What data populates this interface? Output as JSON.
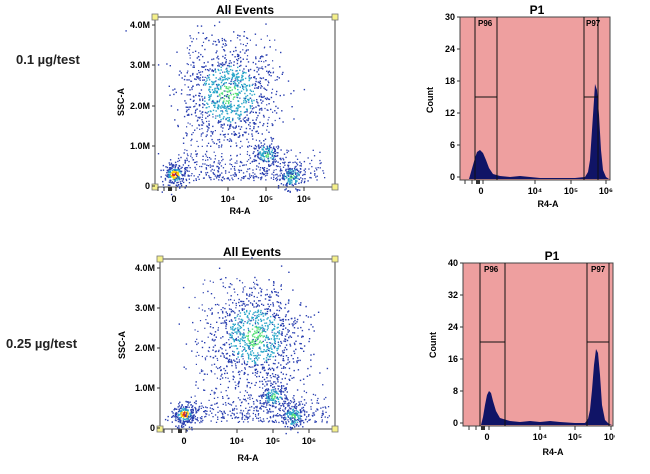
{
  "rows": [
    {
      "label": "0.1 µg/test"
    },
    {
      "label": "0.25 µg/test"
    }
  ],
  "colors": {
    "dot_low": "#2a3fb0",
    "dot_mid": "#2aa6c9",
    "dot_high": "#59e07a",
    "dot_hot": "#ffd500",
    "dot_peak": "#e0301c",
    "histogram_bg": "#ee9f9f",
    "histogram_fill": "#101466",
    "handle": "#f5f08a"
  },
  "chart_data": [
    {
      "type": "scatter",
      "title": "All Events",
      "xlabel": "R4-A",
      "ylabel": "SSC-A",
      "x_scale": "biexponential",
      "x_ticks": [
        "0",
        "10⁴",
        "10⁵",
        "10⁶"
      ],
      "y_ticks": [
        "0",
        "1.0M",
        "2.0M",
        "3.0M",
        "4.0M"
      ],
      "ylim": [
        0,
        4200000
      ],
      "populations": [
        {
          "name": "",
          "x_center": 0,
          "y_center": 300000,
          "density": "high"
        },
        {
          "name": "",
          "x_center": 10000,
          "y_center": 2300000,
          "density": "medium"
        },
        {
          "name": "",
          "x_center": 100000,
          "y_center": 800000,
          "density": "medium"
        },
        {
          "name": "",
          "x_center": 450000,
          "y_center": 250000,
          "density": "medium"
        }
      ]
    },
    {
      "type": "histogram",
      "title": "P1",
      "xlabel": "R4-A",
      "ylabel": "Count",
      "x_scale": "biexponential",
      "x_ticks": [
        "0",
        "10⁴",
        "10⁵",
        "10⁶"
      ],
      "y_ticks": [
        "0",
        "6",
        "12",
        "18",
        "24",
        "30"
      ],
      "ylim": [
        0,
        30
      ],
      "gates": [
        {
          "name": "P96",
          "x_range": [
            -600,
            2500
          ],
          "y": 15
        },
        {
          "name": "P97",
          "x_range": [
            170000,
            1000000
          ],
          "y": 15
        }
      ],
      "peaks": [
        {
          "x": 0,
          "count": 5
        },
        {
          "x": 450000,
          "count": 17.5
        }
      ]
    },
    {
      "type": "scatter",
      "title": "All Events",
      "xlabel": "R4-A",
      "ylabel": "SSC-A",
      "x_scale": "biexponential",
      "x_ticks": [
        "0",
        "10⁴",
        "10⁵",
        "10⁶"
      ],
      "y_ticks": [
        "0",
        "1.0M",
        "2.0M",
        "3.0M",
        "4.0M"
      ],
      "ylim": [
        0,
        4200000
      ],
      "populations": [
        {
          "name": "",
          "x_center": 0,
          "y_center": 350000,
          "density": "high"
        },
        {
          "name": "",
          "x_center": 30000,
          "y_center": 2300000,
          "density": "medium"
        },
        {
          "name": "",
          "x_center": 100000,
          "y_center": 800000,
          "density": "medium"
        },
        {
          "name": "",
          "x_center": 350000,
          "y_center": 300000,
          "density": "medium"
        }
      ]
    },
    {
      "type": "histogram",
      "title": "P1",
      "xlabel": "R4-A",
      "ylabel": "Count",
      "x_scale": "biexponential",
      "x_ticks": [
        "0",
        "10⁴",
        "10⁵",
        "10⁶"
      ],
      "y_ticks": [
        "0",
        "8",
        "16",
        "24",
        "32",
        "40"
      ],
      "ylim": [
        0,
        40
      ],
      "gates": [
        {
          "name": "P96",
          "x_range": [
            -600,
            2500
          ],
          "y": 20
        },
        {
          "name": "P97",
          "x_range": [
            170000,
            1000000
          ],
          "y": 20
        }
      ],
      "peaks": [
        {
          "x": 0,
          "count": 8
        },
        {
          "x": 450000,
          "count": 20
        }
      ]
    }
  ]
}
